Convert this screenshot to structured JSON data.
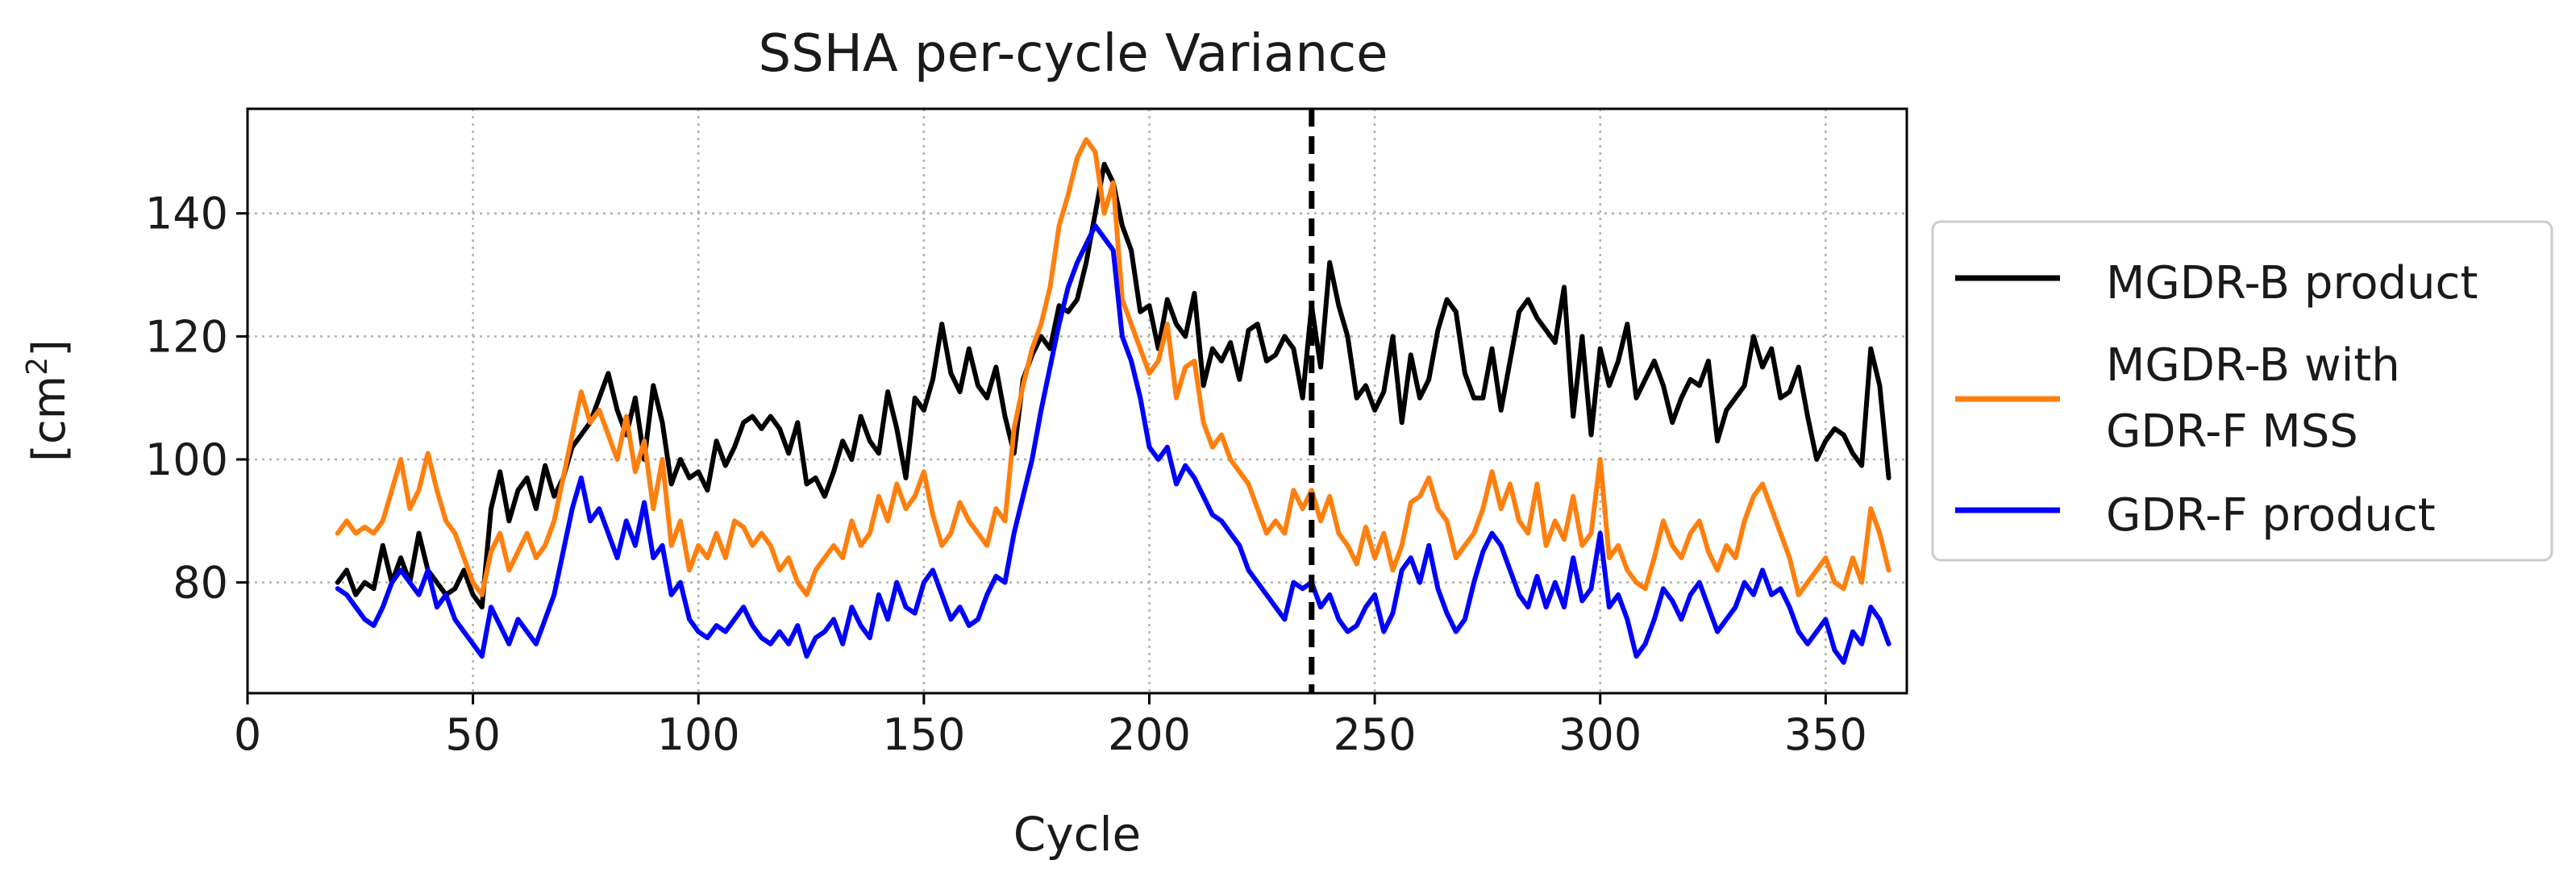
{
  "chart_data": {
    "type": "line",
    "title": "SSHA per-cycle Variance",
    "xlabel": "Cycle",
    "ylabel_prefix": "[cm",
    "ylabel_sup": "2",
    "ylabel_suffix": "]",
    "xlim": [
      0,
      368
    ],
    "ylim": [
      62,
      157
    ],
    "xticks": [
      0,
      50,
      100,
      150,
      200,
      250,
      300,
      350
    ],
    "xtick_labels": [
      "0",
      "50",
      "100",
      "150",
      "200",
      "250",
      "300",
      "350"
    ],
    "yticks": [
      80,
      100,
      120,
      140
    ],
    "ytick_labels": [
      "80",
      "100",
      "120",
      "140"
    ],
    "grid": true,
    "legend_position": "outside-right",
    "vline": {
      "x": 236,
      "style": "dashed",
      "color": "#000000"
    },
    "series": [
      {
        "name": "MGDR-B product",
        "legend_lines": [
          "MGDR-B product"
        ],
        "color": "#000000",
        "x": [
          20,
          22,
          24,
          26,
          28,
          30,
          32,
          34,
          36,
          38,
          40,
          42,
          44,
          46,
          48,
          50,
          52,
          54,
          56,
          58,
          60,
          62,
          64,
          66,
          68,
          70,
          72,
          74,
          76,
          78,
          80,
          82,
          84,
          86,
          88,
          90,
          92,
          94,
          96,
          98,
          100,
          102,
          104,
          106,
          108,
          110,
          112,
          114,
          116,
          118,
          120,
          122,
          124,
          126,
          128,
          130,
          132,
          134,
          136,
          138,
          140,
          142,
          144,
          146,
          148,
          150,
          152,
          154,
          156,
          158,
          160,
          162,
          164,
          166,
          168,
          170,
          172,
          174,
          176,
          178,
          180,
          182,
          184,
          186,
          188,
          190,
          192,
          194,
          196,
          198,
          200,
          202,
          204,
          206,
          208,
          210,
          212,
          214,
          216,
          218,
          220,
          222,
          224,
          226,
          228,
          230,
          232,
          234,
          236,
          238,
          240,
          242,
          244,
          246,
          248,
          250,
          252,
          254,
          256,
          258,
          260,
          262,
          264,
          266,
          268,
          270,
          272,
          274,
          276,
          278,
          280,
          282,
          284,
          286,
          288,
          290,
          292,
          294,
          296,
          298,
          300,
          302,
          304,
          306,
          308,
          310,
          312,
          314,
          316,
          318,
          320,
          322,
          324,
          326,
          328,
          330,
          332,
          334,
          336,
          338,
          340,
          342,
          344,
          346,
          348,
          350,
          352,
          354,
          356,
          358,
          360,
          362,
          364
        ],
        "values": [
          80,
          82,
          78,
          80,
          79,
          86,
          80,
          84,
          80,
          88,
          82,
          80,
          78,
          79,
          82,
          78,
          76,
          92,
          98,
          90,
          95,
          97,
          92,
          99,
          94,
          97,
          102,
          104,
          106,
          110,
          114,
          108,
          104,
          110,
          100,
          112,
          106,
          96,
          100,
          97,
          98,
          95,
          103,
          99,
          102,
          106,
          107,
          105,
          107,
          105,
          101,
          106,
          96,
          97,
          94,
          98,
          103,
          100,
          107,
          103,
          101,
          111,
          105,
          97,
          110,
          108,
          113,
          122,
          114,
          111,
          118,
          112,
          110,
          115,
          107,
          101,
          113,
          117,
          120,
          118,
          125,
          124,
          126,
          132,
          140,
          148,
          145,
          138,
          134,
          124,
          125,
          118,
          126,
          122,
          120,
          127,
          112,
          118,
          116,
          119,
          113,
          121,
          122,
          116,
          117,
          120,
          118,
          110,
          125,
          115,
          132,
          125,
          120,
          110,
          112,
          108,
          111,
          120,
          106,
          117,
          110,
          113,
          121,
          126,
          124,
          114,
          110,
          110,
          118,
          108,
          116,
          124,
          126,
          123,
          121,
          119,
          128,
          107,
          120,
          104,
          118,
          112,
          116,
          122,
          110,
          113,
          116,
          112,
          106,
          110,
          113,
          112,
          116,
          103,
          108,
          110,
          112,
          120,
          115,
          118,
          110,
          111,
          115,
          107,
          100,
          103,
          105,
          104,
          101,
          99,
          118,
          112,
          97
        ]
      },
      {
        "name": "MGDR-B with GDR-F MSS",
        "legend_lines": [
          "MGDR-B with",
          "GDR-F MSS"
        ],
        "color": "#ff7f0e",
        "x": [
          20,
          22,
          24,
          26,
          28,
          30,
          32,
          34,
          36,
          38,
          40,
          42,
          44,
          46,
          48,
          50,
          52,
          54,
          56,
          58,
          60,
          62,
          64,
          66,
          68,
          70,
          72,
          74,
          76,
          78,
          80,
          82,
          84,
          86,
          88,
          90,
          92,
          94,
          96,
          98,
          100,
          102,
          104,
          106,
          108,
          110,
          112,
          114,
          116,
          118,
          120,
          122,
          124,
          126,
          128,
          130,
          132,
          134,
          136,
          138,
          140,
          142,
          144,
          146,
          148,
          150,
          152,
          154,
          156,
          158,
          160,
          162,
          164,
          166,
          168,
          170,
          172,
          174,
          176,
          178,
          180,
          182,
          184,
          186,
          188,
          190,
          192,
          194,
          196,
          198,
          200,
          202,
          204,
          206,
          208,
          210,
          212,
          214,
          216,
          218,
          220,
          222,
          224,
          226,
          228,
          230,
          232,
          234,
          236,
          238,
          240,
          242,
          244,
          246,
          248,
          250,
          252,
          254,
          256,
          258,
          260,
          262,
          264,
          266,
          268,
          270,
          272,
          274,
          276,
          278,
          280,
          282,
          284,
          286,
          288,
          290,
          292,
          294,
          296,
          298,
          300,
          302,
          304,
          306,
          308,
          310,
          312,
          314,
          316,
          318,
          320,
          322,
          324,
          326,
          328,
          330,
          332,
          334,
          336,
          338,
          340,
          342,
          344,
          346,
          348,
          350,
          352,
          354,
          356,
          358,
          360,
          362,
          364
        ],
        "values": [
          88,
          90,
          88,
          89,
          88,
          90,
          95,
          100,
          92,
          95,
          101,
          95,
          90,
          88,
          84,
          80,
          78,
          85,
          88,
          82,
          85,
          88,
          84,
          86,
          90,
          97,
          104,
          111,
          106,
          108,
          104,
          100,
          107,
          98,
          103,
          92,
          100,
          86,
          90,
          82,
          86,
          84,
          88,
          84,
          90,
          89,
          86,
          88,
          86,
          82,
          84,
          80,
          78,
          82,
          84,
          86,
          84,
          90,
          86,
          88,
          94,
          90,
          96,
          92,
          94,
          98,
          91,
          86,
          88,
          93,
          90,
          88,
          86,
          92,
          90,
          105,
          112,
          118,
          122,
          128,
          138,
          143,
          149,
          152,
          150,
          140,
          145,
          126,
          122,
          118,
          114,
          116,
          122,
          110,
          115,
          116,
          106,
          102,
          104,
          100,
          98,
          96,
          92,
          88,
          90,
          88,
          95,
          92,
          95,
          90,
          94,
          88,
          86,
          83,
          89,
          84,
          88,
          82,
          86,
          93,
          94,
          97,
          92,
          90,
          84,
          86,
          88,
          92,
          98,
          92,
          96,
          90,
          88,
          96,
          86,
          90,
          87,
          94,
          86,
          88,
          100,
          84,
          86,
          82,
          80,
          79,
          84,
          90,
          86,
          84,
          88,
          90,
          85,
          82,
          86,
          84,
          90,
          94,
          96,
          92,
          88,
          84,
          78,
          80,
          82,
          84,
          80,
          79,
          84,
          80,
          92,
          88,
          82
        ]
      },
      {
        "name": "GDR-F product",
        "legend_lines": [
          "GDR-F product"
        ],
        "color": "#0000ff",
        "x": [
          20,
          22,
          24,
          26,
          28,
          30,
          32,
          34,
          36,
          38,
          40,
          42,
          44,
          46,
          48,
          50,
          52,
          54,
          56,
          58,
          60,
          62,
          64,
          66,
          68,
          70,
          72,
          74,
          76,
          78,
          80,
          82,
          84,
          86,
          88,
          90,
          92,
          94,
          96,
          98,
          100,
          102,
          104,
          106,
          108,
          110,
          112,
          114,
          116,
          118,
          120,
          122,
          124,
          126,
          128,
          130,
          132,
          134,
          136,
          138,
          140,
          142,
          144,
          146,
          148,
          150,
          152,
          154,
          156,
          158,
          160,
          162,
          164,
          166,
          168,
          170,
          172,
          174,
          176,
          178,
          180,
          182,
          184,
          186,
          188,
          190,
          192,
          194,
          196,
          198,
          200,
          202,
          204,
          206,
          208,
          210,
          212,
          214,
          216,
          218,
          220,
          222,
          224,
          226,
          228,
          230,
          232,
          234,
          236,
          238,
          240,
          242,
          244,
          246,
          248,
          250,
          252,
          254,
          256,
          258,
          260,
          262,
          264,
          266,
          268,
          270,
          272,
          274,
          276,
          278,
          280,
          282,
          284,
          286,
          288,
          290,
          292,
          294,
          296,
          298,
          300,
          302,
          304,
          306,
          308,
          310,
          312,
          314,
          316,
          318,
          320,
          322,
          324,
          326,
          328,
          330,
          332,
          334,
          336,
          338,
          340,
          342,
          344,
          346,
          348,
          350,
          352,
          354,
          356,
          358,
          360,
          362,
          364
        ],
        "values": [
          79,
          78,
          76,
          74,
          73,
          76,
          80,
          82,
          80,
          78,
          82,
          76,
          78,
          74,
          72,
          70,
          68,
          76,
          73,
          70,
          74,
          72,
          70,
          74,
          78,
          85,
          92,
          97,
          90,
          92,
          88,
          84,
          90,
          86,
          93,
          84,
          86,
          78,
          80,
          74,
          72,
          71,
          73,
          72,
          74,
          76,
          73,
          71,
          70,
          72,
          70,
          73,
          68,
          71,
          72,
          74,
          70,
          76,
          73,
          71,
          78,
          74,
          80,
          76,
          75,
          80,
          82,
          78,
          74,
          76,
          73,
          74,
          78,
          81,
          80,
          88,
          94,
          100,
          108,
          115,
          122,
          128,
          132,
          135,
          138,
          136,
          134,
          120,
          116,
          110,
          102,
          100,
          102,
          96,
          99,
          97,
          94,
          91,
          90,
          88,
          86,
          82,
          80,
          78,
          76,
          74,
          80,
          79,
          80,
          76,
          78,
          74,
          72,
          73,
          76,
          78,
          72,
          75,
          82,
          84,
          80,
          86,
          79,
          75,
          72,
          74,
          80,
          85,
          88,
          86,
          82,
          78,
          76,
          81,
          76,
          80,
          76,
          84,
          77,
          79,
          88,
          76,
          78,
          74,
          68,
          70,
          74,
          79,
          77,
          74,
          78,
          80,
          76,
          72,
          74,
          76,
          80,
          78,
          82,
          78,
          79,
          76,
          72,
          70,
          72,
          74,
          69,
          67,
          72,
          70,
          76,
          74,
          70
        ]
      }
    ]
  }
}
